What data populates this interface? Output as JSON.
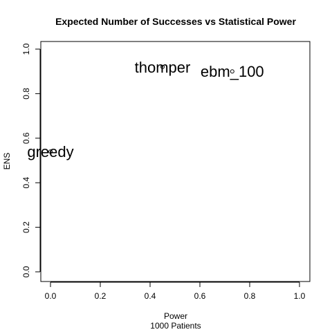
{
  "chart_data": {
    "type": "scatter",
    "title": "Expected Number of Successes vs Statistical Power",
    "xlabel": "Power",
    "xlabel_sub": "1000 Patients",
    "ylabel": "ENS",
    "xlim": [
      0,
      1
    ],
    "ylim": [
      0,
      1
    ],
    "xticks": [
      "0.0",
      "0.2",
      "0.4",
      "0.6",
      "0.8",
      "1.0"
    ],
    "yticks": [
      "0.0",
      "0.2",
      "0.4",
      "0.6",
      "0.8",
      "1.0"
    ],
    "grid": false,
    "points": [
      {
        "label": "greedy",
        "x": 0.0,
        "y": 0.54
      },
      {
        "label": "thomper",
        "x": 0.45,
        "y": 0.92
      },
      {
        "label": "ebm_100",
        "x": 0.73,
        "y": 0.9
      }
    ]
  }
}
